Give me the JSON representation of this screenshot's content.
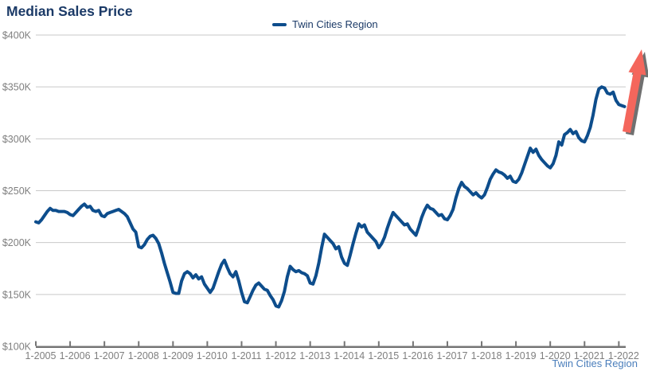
{
  "header": {
    "title": "Median Sales Price"
  },
  "legend": {
    "label": "Twin Cities Region",
    "swatch_color": "#0d4d8c"
  },
  "footer": {
    "label": "Twin Cities Region",
    "color": "#4a7ebb"
  },
  "colors": {
    "line": "#0d4d8c",
    "title_text": "#1b3a67",
    "axis_text": "#7f7f7f",
    "gridline": "#c9c9c9",
    "axis_line": "#757575",
    "arrow": "#f4665c",
    "arrow_shadow": "rgba(35,35,35,0.65)",
    "footer_text": "#4a7ebb"
  },
  "chart_data": {
    "type": "line",
    "title": "Median Sales Price",
    "legend_position": "top-center",
    "grid": "horizontal",
    "ylim": [
      100,
      400
    ],
    "y_ticks": [
      {
        "label": "$400K",
        "value": 400
      },
      {
        "label": "$350K",
        "value": 350
      },
      {
        "label": "$300K",
        "value": 300
      },
      {
        "label": "$250K",
        "value": 250
      },
      {
        "label": "$200K",
        "value": 200
      },
      {
        "label": "$150K",
        "value": 150
      },
      {
        "label": "$100K",
        "value": 100
      }
    ],
    "x_tick_labels": [
      "1-2005",
      "1-2006",
      "1-2007",
      "1-2008",
      "1-2009",
      "1-2010",
      "1-2011",
      "1-2012",
      "1-2013",
      "1-2014",
      "1-2015",
      "1-2016",
      "1-2017",
      "1-2018",
      "1-2019",
      "1-2020",
      "1-2021",
      "1-2022"
    ],
    "series": [
      {
        "name": "Twin Cities Region",
        "color": "#0d4d8c",
        "unit": "USD thousands",
        "interval": "monthly",
        "start": "1-2005",
        "end": "3-2022",
        "values": [
          220,
          219,
          222,
          226,
          230,
          233,
          231,
          231,
          230,
          230,
          230,
          229,
          227,
          226,
          229,
          232,
          235,
          237,
          234,
          235,
          231,
          230,
          231,
          226,
          225,
          228,
          229,
          230,
          231,
          232,
          230,
          228,
          225,
          219,
          213,
          210,
          196,
          195,
          198,
          203,
          206,
          207,
          204,
          199,
          190,
          180,
          171,
          162,
          152,
          151,
          151,
          163,
          170,
          172,
          170,
          166,
          169,
          165,
          167,
          160,
          156,
          152,
          156,
          164,
          172,
          179,
          183,
          176,
          170,
          167,
          172,
          163,
          152,
          143,
          142,
          148,
          154,
          159,
          161,
          158,
          155,
          154,
          149,
          145,
          139,
          138,
          144,
          153,
          167,
          177,
          174,
          172,
          173,
          171,
          170,
          168,
          161,
          160,
          168,
          180,
          195,
          208,
          205,
          202,
          199,
          194,
          196,
          186,
          180,
          178,
          188,
          199,
          209,
          218,
          215,
          217,
          210,
          207,
          204,
          201,
          195,
          199,
          205,
          214,
          222,
          229,
          226,
          223,
          220,
          217,
          218,
          213,
          210,
          207,
          215,
          224,
          231,
          236,
          233,
          232,
          229,
          226,
          227,
          223,
          222,
          226,
          232,
          243,
          252,
          258,
          254,
          252,
          249,
          246,
          248,
          245,
          243,
          246,
          253,
          261,
          266,
          270,
          268,
          267,
          265,
          262,
          264,
          259,
          258,
          261,
          267,
          275,
          283,
          291,
          287,
          290,
          284,
          280,
          277,
          274,
          272,
          276,
          284,
          297,
          294,
          304,
          306,
          309,
          305,
          307,
          301,
          298,
          297,
          303,
          311,
          323,
          338,
          348,
          350,
          349,
          344,
          343,
          345,
          337,
          333,
          332,
          331
        ]
      }
    ],
    "annotations": [
      {
        "type": "up-arrow",
        "color": "#f4665c",
        "meaning": "upward price trend emphasis at end of series"
      }
    ]
  }
}
